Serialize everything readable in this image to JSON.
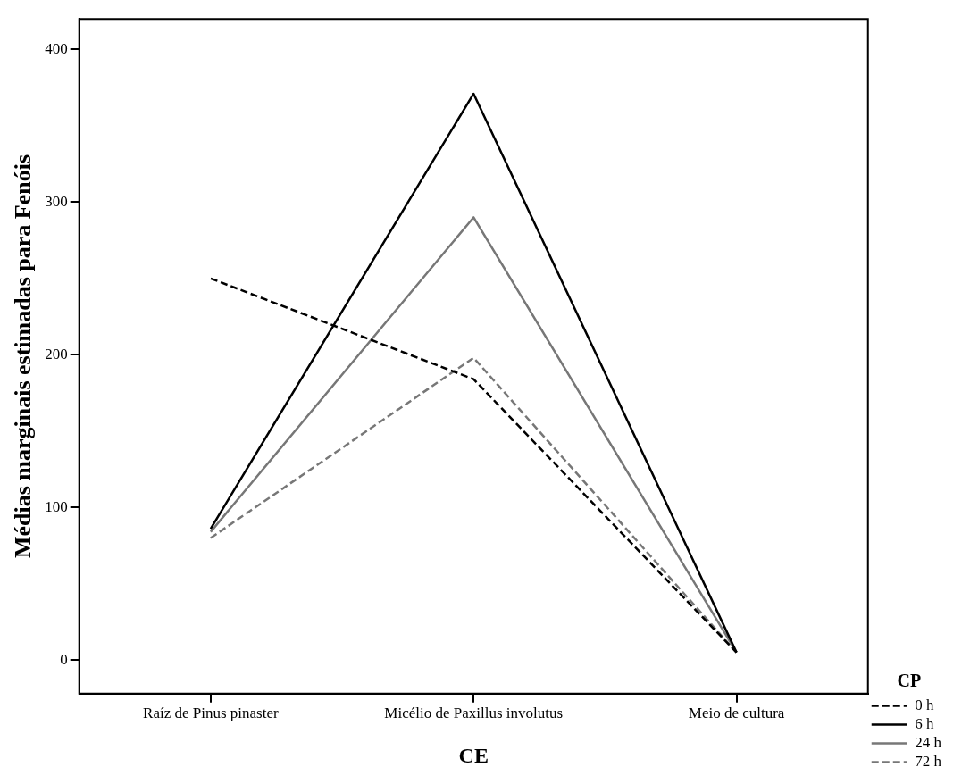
{
  "chart_data": {
    "type": "line",
    "xlabel": "CE",
    "ylabel": "Médias marginais estimadas para Fenóis",
    "legend_title": "CP",
    "categories": [
      "Raíz de Pinus pinaster",
      "Micélio de Paxillus involutus",
      "Meio de cultura"
    ],
    "ylim": [
      -22,
      420
    ],
    "yticks": [
      0,
      100,
      200,
      300,
      400
    ],
    "grid": false,
    "legend": "right",
    "marker": "none",
    "series": [
      {
        "name": "0 h",
        "color": "#000000",
        "line_style": "dashed",
        "values": [
          250,
          184,
          5
        ]
      },
      {
        "name": "6 h",
        "color": "#000000",
        "line_style": "solid",
        "values": [
          86,
          371,
          5
        ]
      },
      {
        "name": "24 h",
        "color": "#777777",
        "line_style": "solid",
        "values": [
          84,
          290,
          5
        ]
      },
      {
        "name": "72 h",
        "color": "#777777",
        "line_style": "dashed",
        "values": [
          80,
          198,
          5
        ]
      }
    ]
  }
}
